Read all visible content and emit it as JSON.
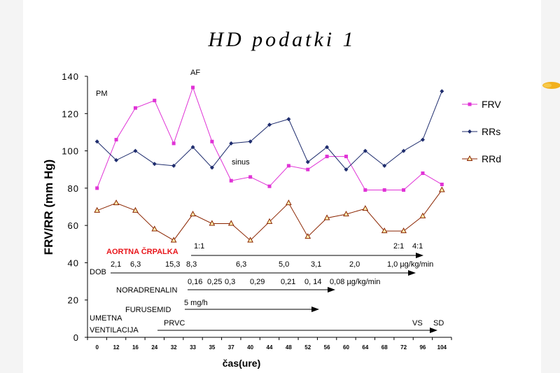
{
  "title": "HD podatki 1",
  "chart_data": {
    "type": "line",
    "ylabel": "FRV/RR (mm Hg)",
    "xlabel": "čas(ure)",
    "ylim": [
      0,
      140
    ],
    "yticks": [
      "0",
      "20",
      "40",
      "60",
      "80",
      "100",
      "120",
      "140"
    ],
    "categories": [
      "0",
      "12",
      "16",
      "24",
      "32",
      "33",
      "35",
      "37",
      "40",
      "44",
      "48",
      "52",
      "56",
      "60",
      "64",
      "68",
      "72",
      "96",
      "104"
    ],
    "legend_position": "right",
    "series": [
      {
        "name": "FRV",
        "color": "#e033d6",
        "marker": "square",
        "values": [
          80,
          106,
          123,
          127,
          104,
          134,
          105,
          84,
          86,
          81,
          92,
          90,
          97,
          97,
          79,
          79,
          79,
          88,
          82
        ]
      },
      {
        "name": "RRs",
        "color": "#1f2d6e",
        "marker": "diamond",
        "values": [
          105,
          95,
          100,
          93,
          92,
          102,
          91,
          104,
          105,
          114,
          117,
          94,
          102,
          90,
          100,
          92,
          100,
          106,
          132
        ]
      },
      {
        "name": "RRd",
        "color": "#8b2500",
        "marker": "triangle",
        "values": [
          68,
          72,
          68,
          58,
          52,
          66,
          61,
          61,
          52,
          62,
          72,
          54,
          64,
          66,
          69,
          57,
          57,
          65,
          79
        ]
      }
    ],
    "annotations": {
      "af": "AF",
      "pm": "PM",
      "sinus": "sinus",
      "aortna": {
        "label": "AORTNA ČRPALKA",
        "r1": "1:1",
        "r2": "2:1",
        "r3": "4:1"
      },
      "dob": {
        "label": "DOB",
        "values": [
          "2,1",
          "6,3",
          "15,3",
          "8,3",
          "6,3",
          "5,0",
          "3,1",
          "2,0",
          "1,0 µg/kg/min"
        ]
      },
      "noradrenalin": {
        "label": "NORADRENALIN",
        "values": [
          "0,16",
          "0,25",
          "0,3",
          "0,29",
          "0,21",
          "0, 14",
          "0,08 µg/kg/min"
        ]
      },
      "furusemid": {
        "label": "FURUSEMID",
        "value": "5 mg/h"
      },
      "ventilacija": {
        "label1": "UMETNA",
        "label2": "VENTILACIJA",
        "prvc": "PRVC",
        "vs": "VS",
        "sd": "SD"
      }
    }
  }
}
